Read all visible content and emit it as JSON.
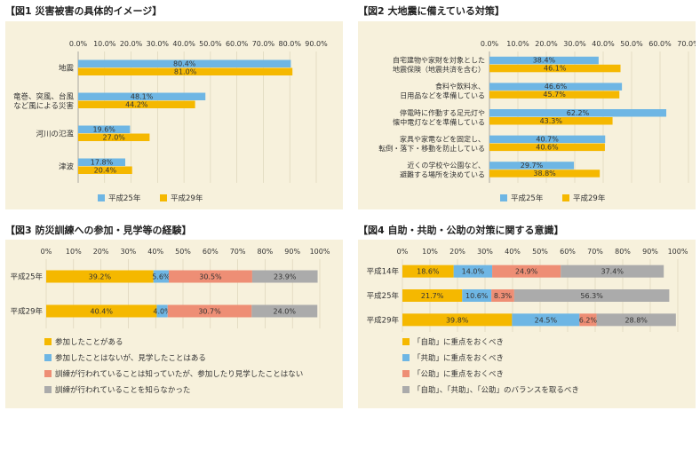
{
  "chart_data": [
    {
      "id": "fig1",
      "type": "bar",
      "title": "【図1 災害被害の具体的イメージ】",
      "orientation": "horizontal",
      "xlim": [
        0,
        90
      ],
      "ticks": [
        "0.0%",
        "10.0%",
        "20.0%",
        "30.0%",
        "40.0%",
        "50.0%",
        "60.0%",
        "70.0%",
        "80.0%",
        "90.0%"
      ],
      "categories": [
        "地震",
        "竜巻、突風、台風など風による災害",
        "河川の氾濫",
        "津波"
      ],
      "category_lines": [
        [
          "地震"
        ],
        [
          "竜巻、突風、台風",
          "など風による災害"
        ],
        [
          "河川の氾濫"
        ],
        [
          "津波"
        ]
      ],
      "series": [
        {
          "name": "平成25年",
          "color": "#6EB6E4",
          "values": [
            80.4,
            48.1,
            19.6,
            17.8
          ],
          "labels": [
            "80.4%",
            "48.1%",
            "19.6%",
            "17.8%"
          ]
        },
        {
          "name": "平成29年",
          "color": "#F5B800",
          "values": [
            81.0,
            44.2,
            27.0,
            20.4
          ],
          "labels": [
            "81.0%",
            "44.2%",
            "27.0%",
            "20.4%"
          ]
        }
      ]
    },
    {
      "id": "fig2",
      "type": "bar",
      "title": "【図2 大地震に備えている対策】",
      "orientation": "horizontal",
      "xlim": [
        0,
        70
      ],
      "ticks": [
        "0.0%",
        "10.0%",
        "20.0%",
        "30.0%",
        "40.0%",
        "50.0%",
        "60.0%",
        "70.0%"
      ],
      "categories": [
        "自宅建物や家財を対象とした地震保険（地震共済を含む）",
        "食料や飲料水、日用品などを準備している",
        "停電時に作動する足元灯や懐中電灯などを準備している",
        "家具や家電などを固定し、転倒・落下・移動を防止している",
        "近くの学校や公園など、避難する場所を決めている"
      ],
      "category_lines": [
        [
          "自宅建物や家財を対象とした",
          "地震保険（地震共済を含む）"
        ],
        [
          "食料や飲料水、",
          "日用品などを準備している"
        ],
        [
          "停電時に作動する足元灯や",
          "懐中電灯などを準備している"
        ],
        [
          "家具や家電などを固定し、",
          "転倒・落下・移動を防止している"
        ],
        [
          "近くの学校や公園など、",
          "避難する場所を決めている"
        ]
      ],
      "series": [
        {
          "name": "平成25年",
          "color": "#6EB6E4",
          "values": [
            38.4,
            46.6,
            62.2,
            40.7,
            29.7
          ],
          "labels": [
            "38.4%",
            "46.6%",
            "62.2%",
            "40.7%",
            "29.7%"
          ]
        },
        {
          "name": "平成29年",
          "color": "#F5B800",
          "values": [
            46.1,
            45.7,
            43.3,
            40.6,
            38.8
          ],
          "labels": [
            "46.1%",
            "45.7%",
            "43.3%",
            "40.6%",
            "38.8%"
          ]
        }
      ]
    },
    {
      "id": "fig3",
      "type": "stacked_bar",
      "title": "【図3 防災訓練への参加・見学等の経験】",
      "orientation": "horizontal",
      "xlim": [
        0,
        100
      ],
      "ticks": [
        "0%",
        "10%",
        "20%",
        "30%",
        "40%",
        "50%",
        "60%",
        "70%",
        "80%",
        "90%",
        "100%"
      ],
      "categories": [
        "平成25年",
        "平成29年"
      ],
      "series": [
        {
          "name": "参加したことがある",
          "color": "#F5B800",
          "values": [
            39.2,
            40.4
          ],
          "labels": [
            "39.2%",
            "40.4%"
          ]
        },
        {
          "name": "参加したことはないが、見学したことはある",
          "color": "#6EB6E4",
          "values": [
            5.6,
            4.0
          ],
          "labels": [
            "5.6%",
            "4.0%"
          ]
        },
        {
          "name": "訓練が行われていることは知っていたが、参加したり見学したことはない",
          "color": "#EE8E75",
          "values": [
            30.5,
            30.7
          ],
          "labels": [
            "30.5%",
            "30.7%"
          ]
        },
        {
          "name": "訓練が行われていることを知らなかった",
          "color": "#ABABAB",
          "values": [
            23.9,
            24.0
          ],
          "labels": [
            "23.9%",
            "24.0%"
          ]
        }
      ]
    },
    {
      "id": "fig4",
      "type": "stacked_bar",
      "title": "【図4 自助・共助・公助の対策に関する意識】",
      "orientation": "horizontal",
      "xlim": [
        0,
        100
      ],
      "ticks": [
        "0%",
        "10%",
        "20%",
        "30%",
        "40%",
        "50%",
        "60%",
        "70%",
        "80%",
        "90%",
        "100%"
      ],
      "categories": [
        "平成14年",
        "平成25年",
        "平成29年"
      ],
      "series": [
        {
          "name": "「自助」に重点をおくべき",
          "color": "#F5B800",
          "values": [
            18.6,
            21.7,
            39.8
          ],
          "labels": [
            "18.6%",
            "21.7%",
            "39.8%"
          ]
        },
        {
          "name": "「共助」に重点をおくべき",
          "color": "#6EB6E4",
          "values": [
            14.0,
            10.6,
            24.5
          ],
          "labels": [
            "14.0%",
            "10.6%",
            "24.5%"
          ]
        },
        {
          "name": "「公助」に重点をおくべき",
          "color": "#EE8E75",
          "values": [
            24.9,
            8.3,
            6.2
          ],
          "labels": [
            "24.9%",
            "8.3%",
            "6.2%"
          ]
        },
        {
          "name": "「自助」、「共助」、「公助」のバランスを取るべき",
          "color": "#ABABAB",
          "values": [
            37.4,
            56.3,
            28.8
          ],
          "labels": [
            "37.4%",
            "56.3%",
            "28.8%"
          ]
        }
      ]
    }
  ]
}
